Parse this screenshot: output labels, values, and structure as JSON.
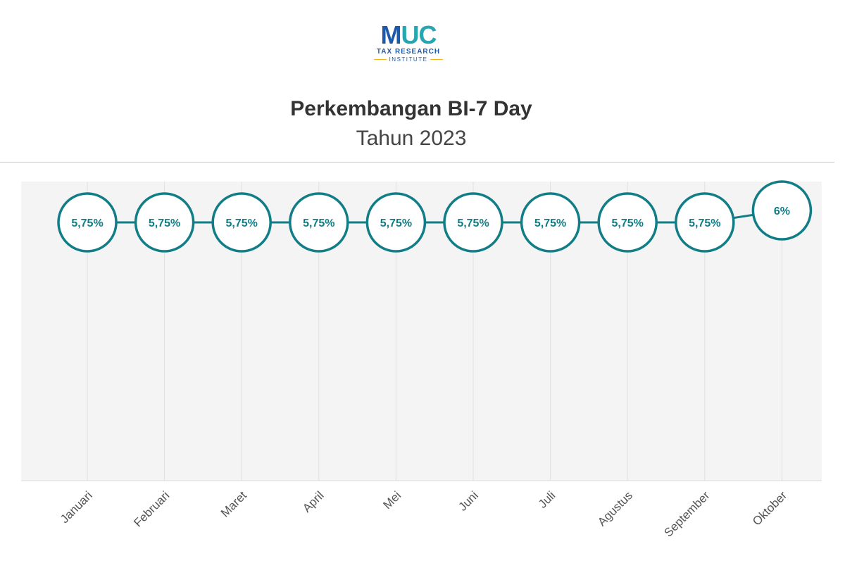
{
  "logo": {
    "mark_m": "M",
    "mark_u": "U",
    "mark_c": "C",
    "line1": "TAX RESEARCH",
    "line2": "INSTITUTE"
  },
  "chart_data": {
    "type": "line",
    "title": "Perkembangan BI-7 Day",
    "subtitle": "Tahun 2023",
    "categories": [
      "Januari",
      "Februari",
      "Maret",
      "April",
      "Mei",
      "Juni",
      "Juli",
      "Agustus",
      "September",
      "Oktober"
    ],
    "series": [
      {
        "values": [
          5.75,
          5.75,
          5.75,
          5.75,
          5.75,
          5.75,
          5.75,
          5.75,
          5.75,
          6
        ],
        "labels": [
          "5,75%",
          "5,75%",
          "5,75%",
          "5,75%",
          "5,75%",
          "5,75%",
          "5,75%",
          "5,75%",
          "5,75%",
          "6%"
        ]
      }
    ],
    "grid": true,
    "colors": {
      "series": "#117d86",
      "plot_background": "#f4f4f4",
      "grid": "#e0e0e0",
      "tick_label": "#555555"
    }
  }
}
